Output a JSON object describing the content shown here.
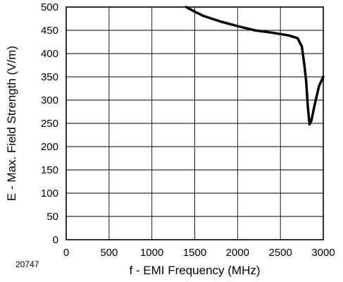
{
  "figure_id": "20747",
  "chart_data": {
    "type": "line",
    "title": "",
    "xlabel": "f - EMI Frequency (MHz)",
    "ylabel": "E - Max. Field Strength (V/m)",
    "xlim": [
      0,
      3000
    ],
    "ylim": [
      0,
      500
    ],
    "xticks": [
      "0",
      "500",
      "1000",
      "1500",
      "2000",
      "2500",
      "3000"
    ],
    "yticks": [
      "0",
      "50",
      "100",
      "150",
      "200",
      "250",
      "300",
      "350",
      "400",
      "450",
      "500"
    ],
    "grid": true,
    "series": [
      {
        "color": "#000000",
        "x": [
          1400,
          1500,
          1600,
          1800,
          2000,
          2200,
          2400,
          2600,
          2700,
          2750,
          2780,
          2800,
          2820,
          2840,
          2860,
          2900,
          2950,
          3000
        ],
        "y": [
          500,
          490,
          481,
          469,
          459,
          450,
          445,
          439,
          433,
          415,
          375,
          340,
          285,
          248,
          255,
          290,
          330,
          350
        ]
      }
    ]
  }
}
